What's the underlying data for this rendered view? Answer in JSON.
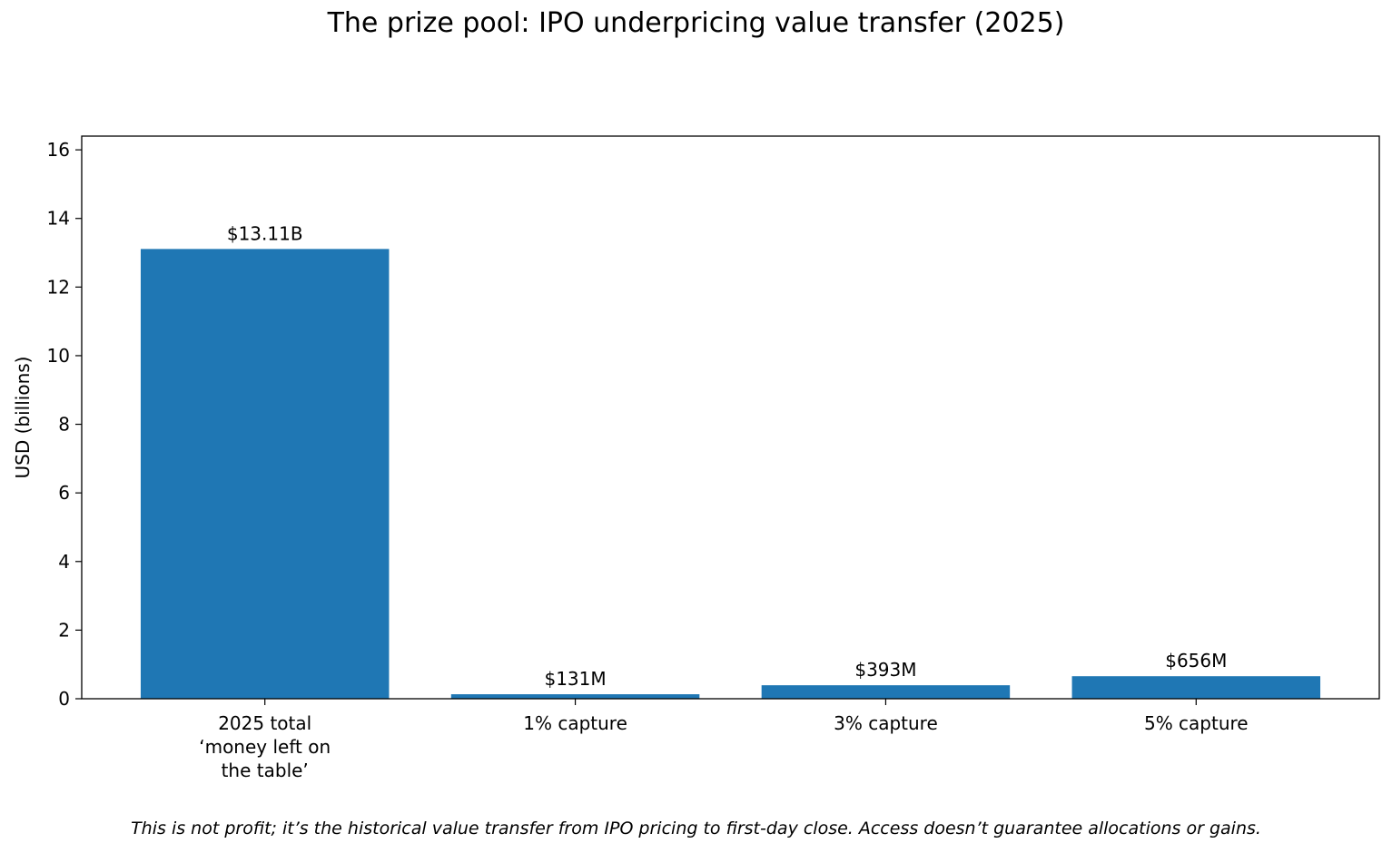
{
  "chart_data": {
    "type": "bar",
    "title": "The prize pool: IPO underpricing value transfer (2025)",
    "xlabel": "",
    "ylabel": "USD (billions)",
    "categories": [
      [
        "2025 total",
        "‘money left on",
        "the table’"
      ],
      [
        "1% capture"
      ],
      [
        "3% capture"
      ],
      [
        "5% capture"
      ]
    ],
    "values": [
      13.11,
      0.131,
      0.393,
      0.656
    ],
    "data_labels": [
      "$13.11B",
      "$131M",
      "$393M",
      "$656M"
    ],
    "ylim": [
      0,
      16.4
    ],
    "yticks": [
      0,
      2,
      4,
      6,
      8,
      10,
      12,
      14,
      16
    ],
    "bar_color": "#1f77b4",
    "grid": false,
    "footnote": "This is not profit; it’s the historical value transfer from IPO pricing to first-day close. Access doesn’t guarantee allocations or gains."
  }
}
